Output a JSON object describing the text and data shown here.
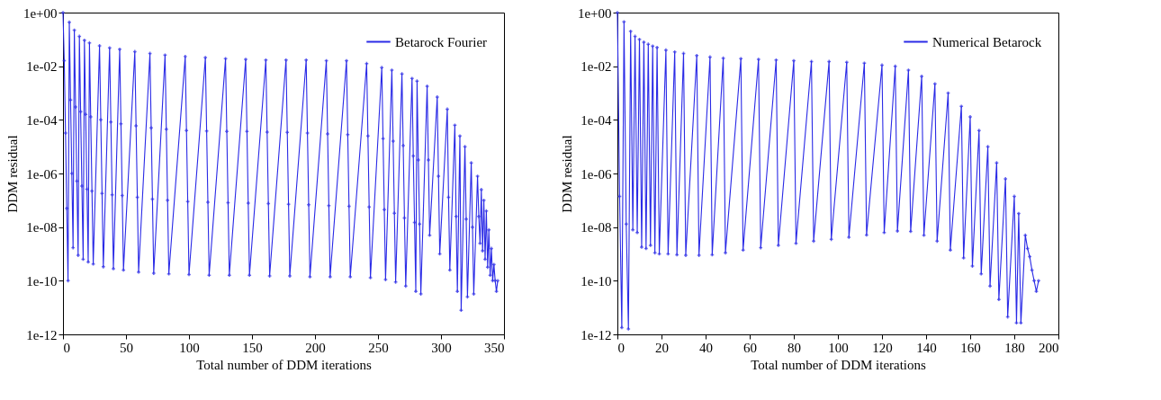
{
  "chart_data": [
    {
      "type": "line",
      "xlabel": "Total number of DDM iterations",
      "ylabel": "DDM residual",
      "log": "y",
      "grid": false,
      "legend": "top right",
      "marker": "cross",
      "line_style": "solid",
      "xlim": [
        0,
        350
      ],
      "xticks": [
        0,
        50,
        100,
        150,
        200,
        250,
        300,
        350
      ],
      "ylim": [
        1e-12,
        1
      ],
      "yticks": [
        {
          "value": 1e-12,
          "label": "1e-12"
        },
        {
          "value": 1e-10,
          "label": "1e-10"
        },
        {
          "value": 1e-08,
          "label": "1e-08"
        },
        {
          "value": 1e-06,
          "label": "1e-06"
        },
        {
          "value": 0.0001,
          "label": "1e-04"
        },
        {
          "value": 0.01,
          "label": "1e-02"
        },
        {
          "value": 1,
          "label": "1e+00"
        }
      ],
      "x": [
        0,
        1,
        2,
        3,
        4,
        5,
        6,
        7,
        8,
        9,
        10,
        11,
        12,
        13,
        14,
        15,
        16,
        17,
        18,
        19,
        20,
        21,
        22,
        23,
        24,
        29,
        30,
        31,
        32,
        37,
        38,
        39,
        40,
        45,
        46,
        47,
        48,
        57,
        58,
        59,
        60,
        69,
        70,
        71,
        72,
        81,
        82,
        83,
        84,
        97,
        98,
        99,
        100,
        113,
        114,
        115,
        116,
        129,
        130,
        131,
        132,
        145,
        146,
        147,
        148,
        161,
        162,
        163,
        164,
        177,
        178,
        179,
        180,
        193,
        194,
        195,
        196,
        209,
        210,
        211,
        212,
        225,
        226,
        227,
        228,
        241,
        242,
        243,
        244,
        253,
        254,
        255,
        256,
        261,
        262,
        263,
        264,
        269,
        270,
        271,
        272,
        277,
        278,
        279,
        280,
        281,
        282,
        283,
        284,
        289,
        290,
        291,
        297,
        298,
        299,
        305,
        306,
        307,
        311,
        312,
        313,
        315,
        316,
        319,
        320,
        321,
        324,
        325,
        326,
        329,
        330,
        331,
        332,
        333,
        334,
        335,
        336,
        337,
        338,
        339,
        340,
        341,
        342,
        343,
        344,
        345
      ],
      "series": [
        {
          "name": "Betarock Fourier",
          "color": "#2a2ae6",
          "values": [
            1,
            0.016,
            3.2e-05,
            5e-08,
            1e-10,
            0.44,
            0.00055,
            1e-06,
            1.7e-09,
            0.22,
            0.0003,
            5.2e-07,
            8.9e-10,
            0.13,
            0.0002,
            3.4e-07,
            6.3e-10,
            0.093,
            0.00016,
            2.6e-07,
            5e-10,
            0.074,
            0.00013,
            2.2e-07,
            4.2e-10,
            0.058,
            0.0001,
            1.8e-07,
            3.3e-10,
            0.048,
            8.3e-05,
            1.6e-07,
            2.8e-10,
            0.043,
            7.1e-05,
            1.5e-07,
            2.5e-10,
            0.035,
            6e-05,
            1.3e-07,
            2.1e-10,
            0.03,
            5e-05,
            1.1e-07,
            1.9e-10,
            0.026,
            4.5e-05,
            1e-07,
            1.8e-10,
            0.023,
            4e-05,
            8.9e-08,
            1.7e-10,
            0.021,
            3.8e-05,
            8.5e-08,
            1.6e-10,
            0.019,
            3.7e-05,
            8.1e-08,
            1.6e-10,
            0.018,
            3.7e-05,
            7.9e-08,
            1.6e-10,
            0.017,
            3.5e-05,
            7.6e-08,
            1.5e-10,
            0.017,
            3.4e-05,
            7.1e-08,
            1.5e-10,
            0.017,
            3.2e-05,
            6.8e-08,
            1.4e-10,
            0.016,
            3e-05,
            6.3e-08,
            1.4e-10,
            0.016,
            2.8e-05,
            6e-08,
            1.4e-10,
            0.0126,
            2.5e-05,
            5.6e-08,
            1.3e-10,
            0.0089,
            2e-05,
            4.5e-08,
            1.1e-10,
            0.0071,
            1.6e-05,
            3.3e-08,
            8.9e-11,
            0.0052,
            1.1e-05,
            2.2e-08,
            6.3e-11,
            0.0035,
            4.5e-06,
            1.5e-08,
            4e-11,
            0.0028,
            3.2e-06,
            1.3e-08,
            3.2e-11,
            0.0018,
            3.2e-06,
            5e-09,
            0.00071,
            7.9e-07,
            1e-09,
            0.00025,
            1.3e-07,
            2.5e-10,
            6.3e-05,
            2.5e-08,
            4e-11,
            2.5e-05,
            7.9e-12,
            1e-05,
            2e-08,
            2.5e-11,
            2.5e-06,
            1e-08,
            3.2e-11,
            7.9e-07,
            2.5e-08,
            2.5e-09,
            2.5e-07,
            1.3e-09,
            1e-07,
            6.3e-10,
            4e-08,
            3.2e-10,
            7.9e-09,
            1.6e-10,
            1.6e-09,
            1e-10,
            4e-10,
            1e-10,
            4e-11,
            1e-10
          ]
        }
      ]
    },
    {
      "type": "line",
      "xlabel": "Total number of DDM iterations",
      "ylabel": "DDM residual",
      "log": "y",
      "grid": false,
      "legend": "top right",
      "marker": "cross",
      "line_style": "solid",
      "xlim": [
        0,
        200
      ],
      "xticks": [
        0,
        20,
        40,
        60,
        80,
        100,
        120,
        140,
        160,
        180,
        200
      ],
      "ylim": [
        1e-12,
        1
      ],
      "yticks": [
        {
          "value": 1e-12,
          "label": "1e-12"
        },
        {
          "value": 1e-10,
          "label": "1e-10"
        },
        {
          "value": 1e-08,
          "label": "1e-08"
        },
        {
          "value": 1e-06,
          "label": "1e-06"
        },
        {
          "value": 0.0001,
          "label": "1e-04"
        },
        {
          "value": 0.01,
          "label": "1e-02"
        },
        {
          "value": 1,
          "label": "1e+00"
        }
      ],
      "x": [
        0,
        1,
        2,
        3,
        4,
        5,
        6,
        7,
        8,
        9,
        10,
        11,
        12,
        13,
        14,
        15,
        16,
        17,
        18,
        19,
        22,
        23,
        26,
        27,
        30,
        31,
        36,
        37,
        42,
        43,
        48,
        49,
        56,
        57,
        64,
        65,
        72,
        73,
        80,
        81,
        88,
        89,
        96,
        97,
        104,
        105,
        112,
        113,
        120,
        121,
        126,
        127,
        132,
        133,
        138,
        139,
        144,
        145,
        150,
        151,
        156,
        157,
        160,
        161,
        164,
        165,
        168,
        169,
        172,
        173,
        176,
        177,
        180,
        181,
        182,
        183,
        185,
        186,
        187,
        188,
        189,
        190,
        191
      ],
      "series": [
        {
          "name": "Numerical Betarock",
          "color": "#2a2ae6",
          "values": [
            1,
            1.4e-07,
            1.8e-12,
            0.45,
            1.3e-08,
            1.6e-12,
            0.2,
            7.9e-09,
            0.13,
            6.3e-09,
            0.1,
            1.8e-09,
            0.079,
            1.6e-09,
            0.066,
            2.1e-09,
            0.056,
            1.1e-09,
            0.05,
            1e-09,
            0.04,
            1e-09,
            0.034,
            9.3e-10,
            0.03,
            8.9e-10,
            0.025,
            8.9e-10,
            0.022,
            9.3e-10,
            0.02,
            1.1e-09,
            0.019,
            1.4e-09,
            0.018,
            1.7e-09,
            0.017,
            2.1e-09,
            0.016,
            2.5e-09,
            0.015,
            3e-09,
            0.015,
            3.5e-09,
            0.014,
            4.2e-09,
            0.013,
            5.1e-09,
            0.011,
            6.3e-09,
            0.01,
            7.1e-09,
            0.0071,
            6.9e-09,
            0.0042,
            5e-09,
            0.0022,
            3e-09,
            0.001,
            1.4e-09,
            0.00032,
            7.1e-10,
            0.00013,
            3.5e-10,
            4e-05,
            1.8e-10,
            1e-05,
            6.3e-11,
            2.5e-06,
            2e-11,
            6.3e-07,
            4.5e-12,
            1.4e-07,
            2.7e-12,
            3.2e-08,
            2.7e-12,
            5e-09,
            1.6e-09,
            7.9e-10,
            2.5e-10,
            1e-10,
            4e-11,
            1e-10
          ]
        }
      ]
    }
  ]
}
